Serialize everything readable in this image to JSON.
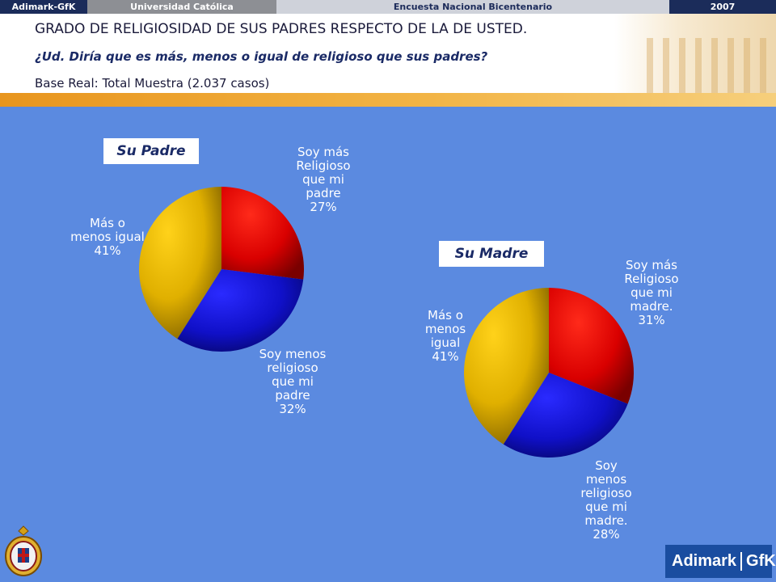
{
  "topbar": {
    "brand": "Adimark-GfK",
    "university": "Universidad Católica",
    "survey": "Encuesta Nacional Bicentenario",
    "year": "2007"
  },
  "header": {
    "title": "GRADO DE RELIGIOSIDAD DE SUS PADRES RESPECTO DE LA DE USTED.",
    "question": "¿Ud. Diría que es más, menos  o igual de religioso que sus padres?",
    "base": "Base Real: Total Muestra (2.037 casos)"
  },
  "colors": {
    "background": "#5b8ae0",
    "red": "#e01010",
    "blue": "#1515d8",
    "gold": "#f2c200",
    "orange_stripe": "#f0a830"
  },
  "chart_data": [
    {
      "type": "pie",
      "title": "Su Padre",
      "slices": [
        {
          "label": "Soy más\nReligioso\nque mi\npadre\n27%",
          "value": 27,
          "color": "red"
        },
        {
          "label": "Soy menos\nreligioso\nque mi\npadre\n32%",
          "value": 32,
          "color": "blue"
        },
        {
          "label": "Más o\nmenos igual\n41%",
          "value": 41,
          "color": "gold"
        }
      ]
    },
    {
      "type": "pie",
      "title": "Su Madre",
      "slices": [
        {
          "label": "Soy más\nReligioso\nque mi\nmadre.\n31%",
          "value": 31,
          "color": "red"
        },
        {
          "label": "Soy\nmenos\nreligioso\nque mi\nmadre.\n28%",
          "value": 28,
          "color": "blue"
        },
        {
          "label": "Más o\nmenos\nigual\n41%",
          "value": 41,
          "color": "gold"
        }
      ]
    }
  ],
  "footer": {
    "logo_left": "Adimark",
    "logo_right": "GfK",
    "crest_icon": "university-crest-icon"
  }
}
